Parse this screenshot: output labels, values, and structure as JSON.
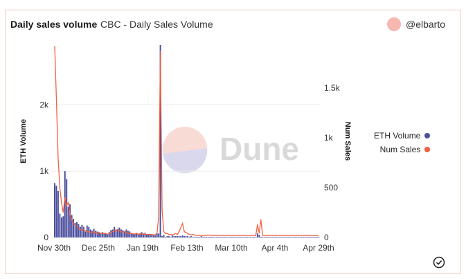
{
  "header": {
    "title": "Daily sales volume",
    "subtitle": "CBC - Daily Sales Volume",
    "author": "@elbarto"
  },
  "watermark": "Dune",
  "colors": {
    "eth_volume": "#4b4f9e",
    "num_sales": "#f0603f",
    "border": "#f2c8c2",
    "avatar": "#f6b8b0"
  },
  "chart_data": {
    "type": "bar",
    "x_tick_labels": [
      "Nov 30th",
      "Dec 25th",
      "Jan 19th",
      "Feb 13th",
      "Mar 10th",
      "Apr 4th",
      "Apr 29th"
    ],
    "left_axis": {
      "label": "ETH Volume",
      "ticks": [
        "0",
        "1k",
        "2k"
      ],
      "range": [
        0,
        2900
      ]
    },
    "right_axis": {
      "label": "Num Sales",
      "ticks": [
        "0",
        "500",
        "1k",
        "1.5k"
      ],
      "range": [
        0,
        1930
      ]
    },
    "legend_position": "right",
    "grid": true,
    "series": [
      {
        "name": "ETH Volume",
        "type": "bar",
        "axis": "left",
        "values": [
          820,
          780,
          700,
          360,
          300,
          320,
          1000,
          880,
          460,
          500,
          340,
          280,
          220,
          230,
          200,
          160,
          190,
          160,
          90,
          180,
          160,
          120,
          100,
          130,
          100,
          90,
          80,
          70,
          80,
          70,
          60,
          50,
          80,
          110,
          120,
          160,
          120,
          130,
          150,
          120,
          110,
          90,
          120,
          100,
          90,
          60,
          60,
          50,
          70,
          50,
          60,
          80,
          60,
          70,
          40,
          50,
          50,
          40,
          40,
          30,
          60,
          60,
          2900,
          20,
          40,
          10,
          20,
          20,
          10,
          30,
          20,
          20,
          20,
          20,
          20,
          30,
          20,
          20,
          20,
          10,
          20,
          10,
          10,
          10,
          10,
          10,
          20,
          10,
          10,
          10,
          10,
          10,
          10,
          10,
          10,
          10,
          10,
          10,
          10,
          10,
          10,
          10,
          10,
          10,
          10,
          10,
          10,
          10,
          10,
          10,
          10,
          10,
          10,
          10,
          10,
          10,
          10,
          10,
          10,
          60,
          40,
          10,
          10,
          10,
          10,
          10,
          10,
          10,
          10,
          10,
          10,
          10,
          10,
          10,
          10,
          10,
          10,
          10,
          10,
          10,
          10,
          10,
          10,
          10,
          10,
          10,
          10,
          10,
          10,
          10,
          10,
          10,
          10,
          10,
          10,
          10
        ]
      },
      {
        "name": "Num Sales",
        "type": "line",
        "axis": "right",
        "values": [
          1920,
          1400,
          800,
          500,
          350,
          250,
          400,
          320,
          350,
          230,
          180,
          140,
          120,
          110,
          90,
          80,
          70,
          80,
          70,
          60,
          60,
          50,
          50,
          60,
          50,
          40,
          50,
          40,
          40,
          40,
          40,
          30,
          40,
          50,
          60,
          70,
          60,
          80,
          70,
          60,
          50,
          60,
          50,
          40,
          40,
          40,
          35,
          35,
          40,
          35,
          30,
          40,
          30,
          35,
          30,
          30,
          30,
          30,
          25,
          30,
          40,
          200,
          1870,
          280,
          60,
          40,
          40,
          30,
          30,
          25,
          30,
          40,
          30,
          60,
          100,
          140,
          60,
          50,
          40,
          30,
          25,
          30,
          25,
          20,
          20,
          20,
          20,
          20,
          20,
          20,
          20,
          25,
          20,
          20,
          20,
          20,
          20,
          20,
          20,
          20,
          20,
          20,
          20,
          20,
          20,
          20,
          20,
          20,
          20,
          20,
          20,
          20,
          20,
          20,
          20,
          20,
          20,
          20,
          20,
          130,
          40,
          180,
          20,
          20,
          20,
          20,
          20,
          20,
          20,
          20,
          20,
          20,
          20,
          20,
          20,
          20,
          20,
          20,
          20,
          20,
          20,
          20,
          20,
          20,
          20,
          20,
          20,
          20,
          20,
          20,
          20,
          20,
          20,
          20,
          20,
          20
        ]
      }
    ]
  }
}
